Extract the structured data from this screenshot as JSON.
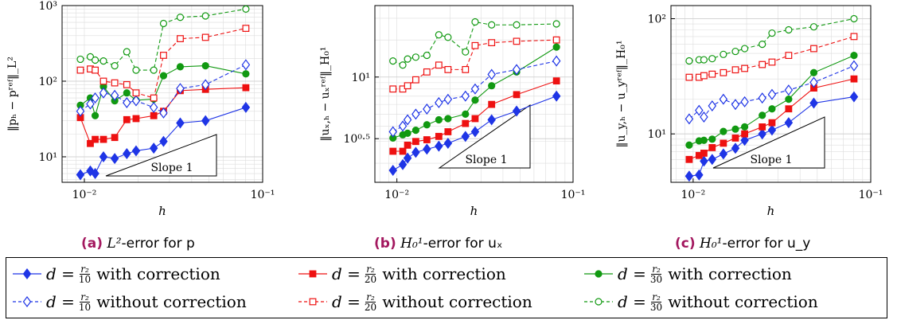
{
  "colors": {
    "blue": "#1f35e6",
    "red": "#ee1111",
    "green": "#119911",
    "caption": "#a3185f"
  },
  "captions": [
    {
      "tag": "(a)",
      "math": "L²",
      "text": "-error for p"
    },
    {
      "tag": "(b)",
      "math": "H₀¹",
      "text": "-error for uₓ"
    },
    {
      "tag": "(c)",
      "math": "H₀¹",
      "text": "-error for u_y"
    }
  ],
  "legend": {
    "items": [
      {
        "d": "d =",
        "num": "r₂",
        "den": "10",
        "label": "with correction",
        "color": "blue",
        "marker": "diamond-filled",
        "dashed": false
      },
      {
        "d": "d =",
        "num": "r₂",
        "den": "20",
        "label": "with correction",
        "color": "red",
        "marker": "square-filled",
        "dashed": false
      },
      {
        "d": "d =",
        "num": "r₂",
        "den": "30",
        "label": "with correction",
        "color": "green",
        "marker": "circle-filled",
        "dashed": false
      },
      {
        "d": "d =",
        "num": "r₂",
        "den": "10",
        "label": "without correction",
        "color": "blue",
        "marker": "diamond-open",
        "dashed": true
      },
      {
        "d": "d =",
        "num": "r₂",
        "den": "20",
        "label": "without correction",
        "color": "red",
        "marker": "square-open",
        "dashed": true
      },
      {
        "d": "d =",
        "num": "r₂",
        "den": "30",
        "label": "without correction",
        "color": "green",
        "marker": "circle-open",
        "dashed": true
      }
    ]
  },
  "chart_data": [
    {
      "type": "line",
      "scale": "log-log",
      "xlabel": "h",
      "ylabel": "‖pₕ − pʳᵉᶠ‖_L²",
      "xlim": [
        0.0075,
        0.1
      ],
      "ylim": [
        4.6,
        1000
      ],
      "xticks": [
        {
          "v": 0.01,
          "label": "10⁻²"
        },
        {
          "v": 0.1,
          "label": "10⁻¹"
        }
      ],
      "yticks": [
        {
          "v": 10,
          "label": "10¹"
        },
        {
          "v": 100,
          "label": "10²"
        },
        {
          "v": 1000,
          "label": "10³"
        }
      ],
      "slope_label": "Slope 1",
      "x": [
        0.0095,
        0.0108,
        0.0115,
        0.0128,
        0.0148,
        0.0173,
        0.0195,
        0.0245,
        0.0278,
        0.0345,
        0.0478,
        0.0805
      ],
      "series": [
        {
          "name": "d = r₂/10 with correction",
          "color": "blue",
          "marker": "diamond-filled",
          "dashed": false,
          "values": [
            5.8,
            6.5,
            6.0,
            10.0,
            9.5,
            11.0,
            12.0,
            13.0,
            16.0,
            28.0,
            30.0,
            45.0
          ]
        },
        {
          "name": "d = r₂/20 with correction",
          "color": "red",
          "marker": "square-filled",
          "dashed": false,
          "values": [
            33,
            15,
            17,
            17,
            18,
            31,
            32,
            35,
            40,
            75,
            78,
            82
          ]
        },
        {
          "name": "d = r₂/30 with correction",
          "color": "green",
          "marker": "circle-filled",
          "dashed": false,
          "values": [
            48,
            60,
            35,
            85,
            55,
            70,
            56,
            58,
            118,
            155,
            160,
            125
          ]
        },
        {
          "name": "d = r₂/10 without correction",
          "color": "blue",
          "marker": "diamond-open",
          "dashed": true,
          "values": [
            40,
            50,
            60,
            70,
            65,
            52,
            55,
            45,
            38,
            80,
            90,
            165
          ]
        },
        {
          "name": "d = r₂/20 without correction",
          "color": "red",
          "marker": "square-open",
          "dashed": true,
          "values": [
            140,
            145,
            140,
            100,
            95,
            90,
            70,
            60,
            220,
            365,
            380,
            500
          ]
        },
        {
          "name": "d = r₂/30 without correction",
          "color": "green",
          "marker": "circle-open",
          "dashed": true,
          "values": [
            195,
            210,
            190,
            185,
            160,
            245,
            140,
            140,
            580,
            700,
            730,
            900
          ]
        }
      ]
    },
    {
      "type": "line",
      "scale": "log-log",
      "xlabel": "h",
      "ylabel": "‖uₓ,ₕ − uₓʳᵉᶠ‖_H₀¹",
      "xlim": [
        0.0075,
        0.1
      ],
      "ylim": [
        1.4,
        38
      ],
      "xticks": [
        {
          "v": 0.01,
          "label": "10⁻²"
        },
        {
          "v": 0.1,
          "label": "10⁻¹"
        }
      ],
      "yticks": [
        {
          "v": 3.1623,
          "label": "10⁰·⁵"
        },
        {
          "v": 10,
          "label": "10¹"
        }
      ],
      "slope_label": "Slope 1",
      "x": [
        0.0095,
        0.0108,
        0.0115,
        0.0128,
        0.0148,
        0.0173,
        0.0195,
        0.0245,
        0.0278,
        0.0345,
        0.0478,
        0.0805
      ],
      "series": [
        {
          "name": "d = r₂/10 with correction",
          "color": "blue",
          "marker": "diamond-filled",
          "dashed": false,
          "values": [
            1.75,
            1.95,
            2.2,
            2.45,
            2.6,
            2.75,
            2.9,
            3.3,
            3.6,
            4.5,
            5.3,
            7.0
          ]
        },
        {
          "name": "d = r₂/20 with correction",
          "color": "red",
          "marker": "square-filled",
          "dashed": false,
          "values": [
            2.5,
            2.5,
            2.8,
            3.0,
            3.1,
            3.3,
            3.6,
            4.2,
            4.6,
            6.0,
            7.2,
            9.3
          ]
        },
        {
          "name": "d = r₂/30 with correction",
          "color": "green",
          "marker": "circle-filled",
          "dashed": false,
          "values": [
            3.2,
            3.4,
            3.5,
            3.7,
            4.1,
            4.5,
            4.6,
            5.0,
            6.5,
            8.5,
            11.0,
            17.5
          ]
        },
        {
          "name": "d = r₂/10 without correction",
          "color": "blue",
          "marker": "diamond-open",
          "dashed": true,
          "values": [
            3.6,
            4.0,
            4.5,
            5.0,
            5.5,
            6.2,
            6.6,
            7.0,
            8.0,
            10.5,
            11.5,
            13.5
          ]
        },
        {
          "name": "d = r₂/20 without correction",
          "color": "red",
          "marker": "square-open",
          "dashed": true,
          "values": [
            8.0,
            8.0,
            8.5,
            9.5,
            11.0,
            12.5,
            11.5,
            11.5,
            18.0,
            19.0,
            19.5,
            20.0
          ]
        },
        {
          "name": "d = r₂/30 without correction",
          "color": "green",
          "marker": "circle-open",
          "dashed": true,
          "values": [
            13.5,
            12.5,
            14.0,
            14.5,
            15.0,
            22.0,
            21.0,
            16.0,
            28.0,
            26.5,
            26.5,
            27.0
          ]
        }
      ]
    },
    {
      "type": "line",
      "scale": "log-log",
      "xlabel": "h",
      "ylabel": "‖u_y,ₕ − u_yʳᵉᶠ‖_H₀¹",
      "xlim": [
        0.0075,
        0.1
      ],
      "ylim": [
        3.8,
        130
      ],
      "xticks": [
        {
          "v": 0.01,
          "label": "10⁻²"
        },
        {
          "v": 0.1,
          "label": "10⁻¹"
        }
      ],
      "yticks": [
        {
          "v": 10,
          "label": "10¹"
        },
        {
          "v": 100,
          "label": "10²"
        }
      ],
      "slope_label": "Slope 1",
      "x": [
        0.0095,
        0.0108,
        0.0115,
        0.0128,
        0.0148,
        0.0173,
        0.0195,
        0.0245,
        0.0278,
        0.0345,
        0.0478,
        0.0805
      ],
      "series": [
        {
          "name": "d = r₂/10 with correction",
          "color": "blue",
          "marker": "diamond-filled",
          "dashed": false,
          "values": [
            4.3,
            4.4,
            5.8,
            6.0,
            6.7,
            7.5,
            8.8,
            10.0,
            10.8,
            12.5,
            18.5,
            21.0
          ]
        },
        {
          "name": "d = r₂/20 with correction",
          "color": "red",
          "marker": "square-filled",
          "dashed": false,
          "values": [
            6.0,
            6.5,
            6.8,
            7.6,
            8.3,
            9.2,
            10.0,
            11.5,
            12.5,
            16.5,
            25.0,
            30.0
          ]
        },
        {
          "name": "d = r₂/30 with correction",
          "color": "green",
          "marker": "circle-filled",
          "dashed": false,
          "values": [
            8.0,
            8.7,
            8.8,
            9.0,
            10.5,
            11.0,
            11.5,
            14.5,
            16.5,
            20.0,
            34.0,
            48.0
          ]
        },
        {
          "name": "d = r₂/10 without correction",
          "color": "blue",
          "marker": "diamond-open",
          "dashed": true,
          "values": [
            13.5,
            16.0,
            14.0,
            17.5,
            20.0,
            18.0,
            19.0,
            20.5,
            22.0,
            24.0,
            28.0,
            39.0
          ]
        },
        {
          "name": "d = r₂/20 without correction",
          "color": "red",
          "marker": "square-open",
          "dashed": true,
          "values": [
            31.0,
            31.0,
            32.0,
            33.0,
            34.0,
            36.0,
            37.0,
            40.0,
            42.0,
            48.0,
            55.0,
            70.0
          ]
        },
        {
          "name": "d = r₂/30 without correction",
          "color": "green",
          "marker": "circle-open",
          "dashed": true,
          "values": [
            43.0,
            44.0,
            44.0,
            45.0,
            49.0,
            52.0,
            55.0,
            60.0,
            75.0,
            80.0,
            85.0,
            100.0
          ]
        }
      ]
    }
  ]
}
